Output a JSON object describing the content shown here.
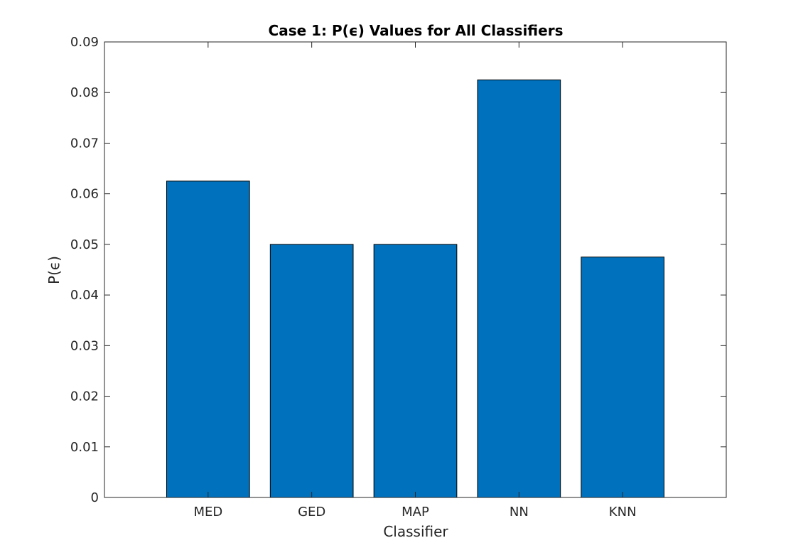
{
  "chart_data": {
    "type": "bar",
    "title": "Case 1: P(ϵ) Values for All Classifiers",
    "xlabel": "Classifier",
    "ylabel": "P(ϵ)",
    "categories": [
      "MED",
      "GED",
      "MAP",
      "NN",
      "KNN"
    ],
    "values": [
      0.0625,
      0.05,
      0.05,
      0.0825,
      0.0475
    ],
    "ylim": [
      0,
      0.09
    ],
    "yticks": [
      "0",
      "0.01",
      "0.02",
      "0.03",
      "0.04",
      "0.05",
      "0.06",
      "0.07",
      "0.08",
      "0.09"
    ],
    "grid": false,
    "bar_color": "#0072BD",
    "bar_edge_color": "#000000"
  }
}
